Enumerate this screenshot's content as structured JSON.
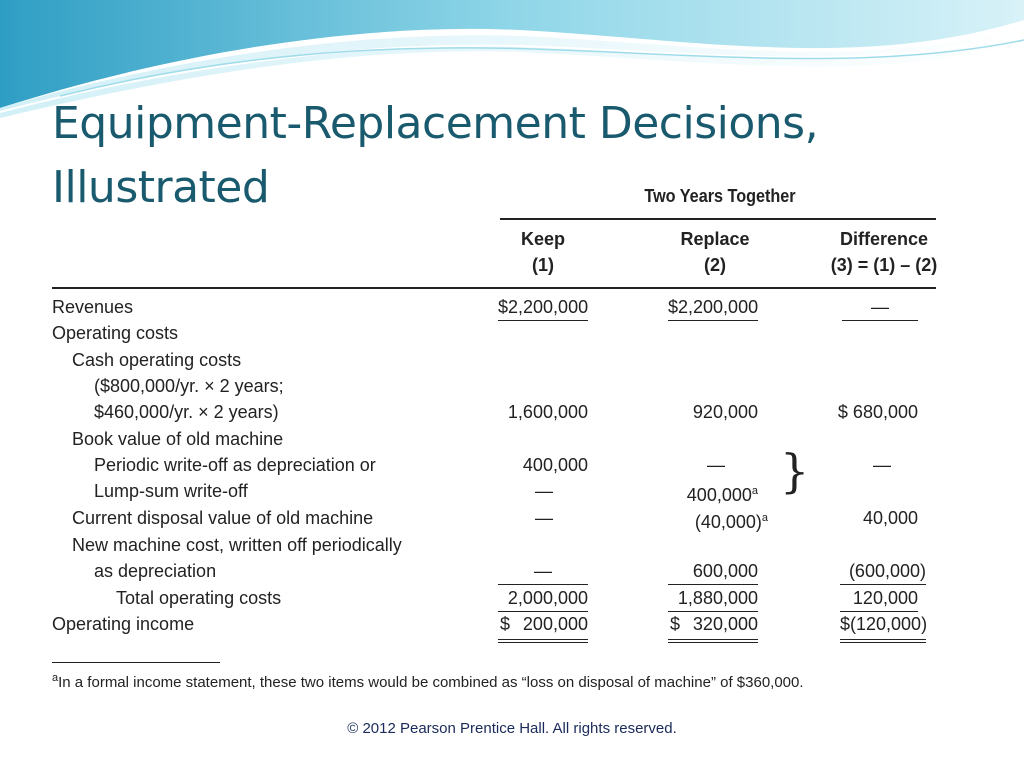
{
  "title": {
    "line1": "Equipment-Replacement Decisions,",
    "line2": "Illustrated"
  },
  "table": {
    "group_header": "Two Years Together",
    "columns": [
      {
        "label": "Keep",
        "sub": "(1)"
      },
      {
        "label": "Replace",
        "sub": "(2)"
      },
      {
        "label": "Difference",
        "sub": "(3) = (1) – (2)"
      }
    ],
    "rows": [
      {
        "label": "Revenues",
        "keep": "$2,200,000",
        "replace": "$2,200,000",
        "diff": "—"
      },
      {
        "label": "Operating costs",
        "keep": "",
        "replace": "",
        "diff": ""
      },
      {
        "label": "Cash operating costs",
        "keep": "",
        "replace": "",
        "diff": ""
      },
      {
        "label": "($800,000/yr. × 2 years;",
        "keep": "",
        "replace": "",
        "diff": ""
      },
      {
        "label": "$460,000/yr. × 2 years)",
        "keep": "1,600,000",
        "replace": "920,000",
        "diff": "$ 680,000"
      },
      {
        "label": "Book value of old machine",
        "keep": "",
        "replace": "",
        "diff": ""
      },
      {
        "label": "Periodic write-off as depreciation or",
        "keep": "400,000",
        "replace": "—",
        "diff": "—"
      },
      {
        "label": "Lump-sum write-off",
        "keep": "—",
        "replace": "400,000",
        "replace_sup": "a",
        "diff": ""
      },
      {
        "label": "Current disposal value of old machine",
        "keep": "—",
        "replace": "(40,000)",
        "replace_sup": "a",
        "diff": "40,000"
      },
      {
        "label": "New machine cost, written off periodically",
        "keep": "",
        "replace": "",
        "diff": ""
      },
      {
        "label": "as depreciation",
        "keep": "—",
        "replace": "600,000",
        "diff": "(600,000)"
      },
      {
        "label": "Total operating costs",
        "keep": "2,000,000",
        "replace": "1,880,000",
        "diff": "120,000"
      },
      {
        "label": "Operating income",
        "keep_cur": "$",
        "keep": "200,000",
        "replace_cur": "$",
        "replace": "320,000",
        "diff": "$(120,000)"
      }
    ],
    "footnote": {
      "marker": "a",
      "text": "In a formal income statement, these two items would be combined as “loss on disposal of machine” of $360,000."
    }
  },
  "footer": "© 2012 Pearson Prentice Hall. All rights reserved.",
  "colors": {
    "title": "#1a5a6e",
    "wave_dark": "#3aa7c9",
    "wave_light": "#bde8f2"
  }
}
